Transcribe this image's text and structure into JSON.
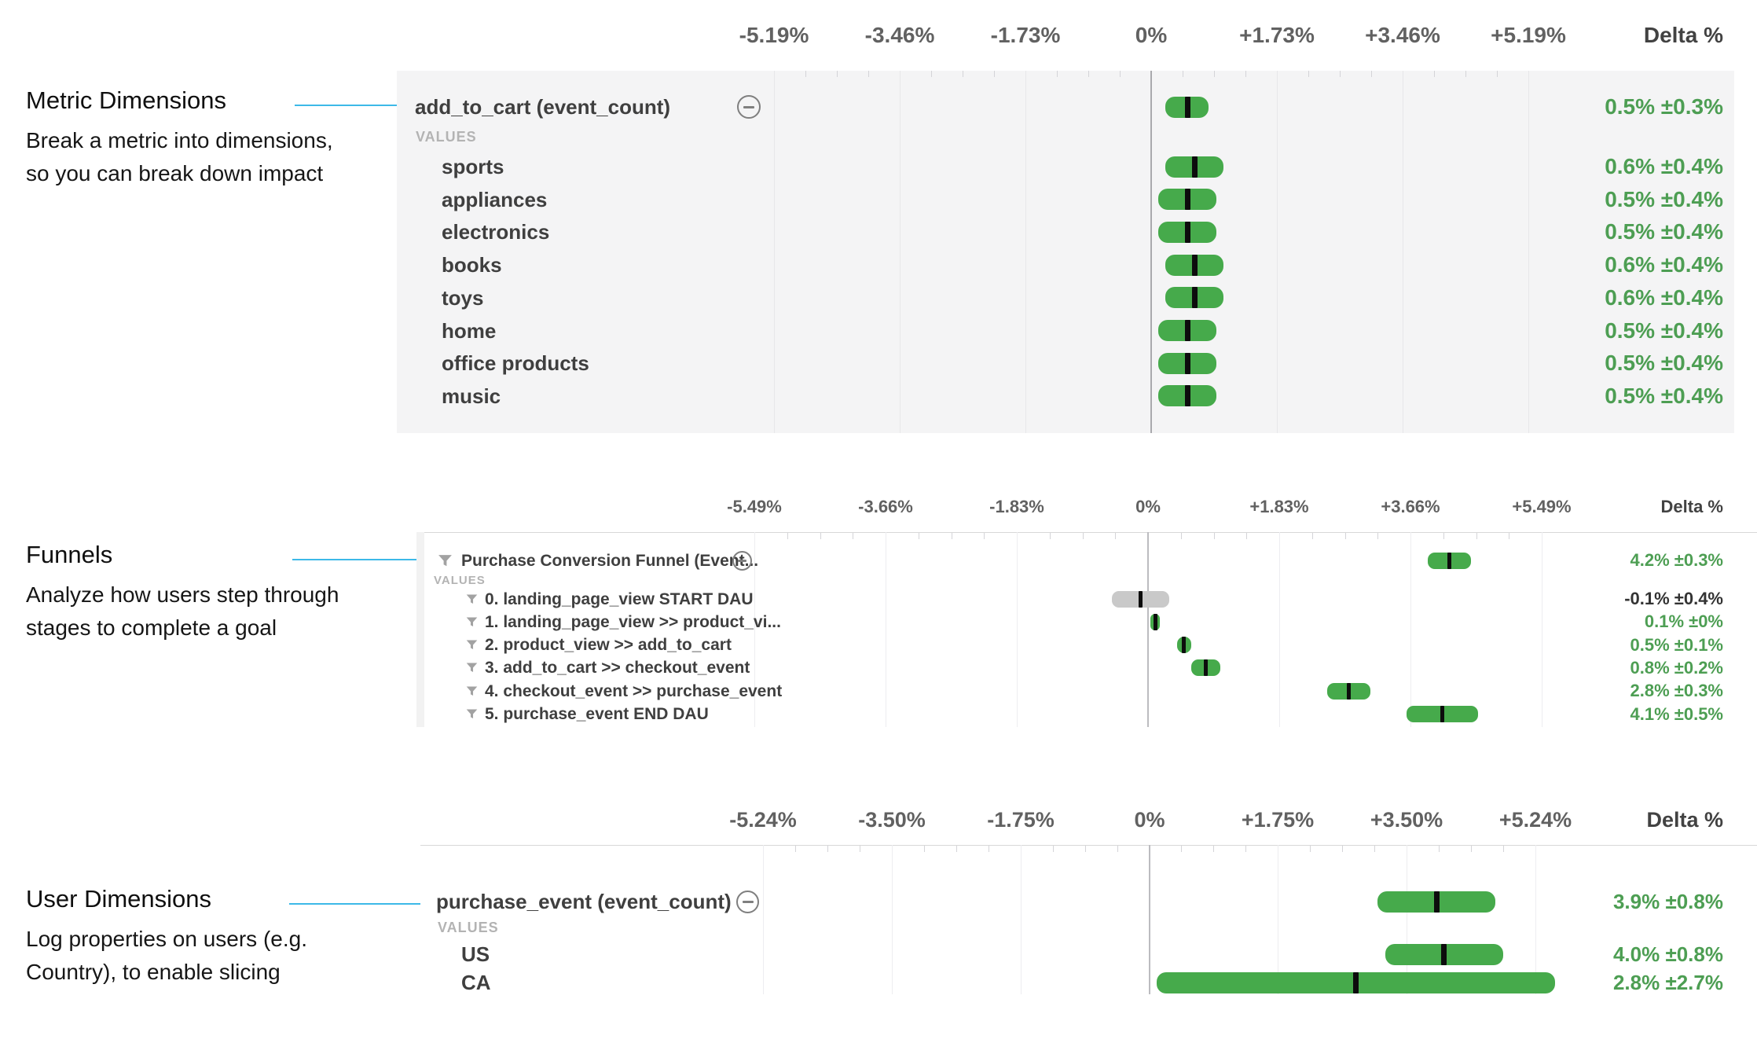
{
  "colors": {
    "bar_green": "#46aa4b",
    "bar_gray": "#c9c9c9",
    "delta_green": "#4d9e53",
    "delta_dark": "#333333",
    "accent_blue": "#3db9e8"
  },
  "annotations": [
    {
      "title": "Metric Dimensions",
      "lines": [
        "Break a metric into dimensions,",
        "so you can break down impact"
      ]
    },
    {
      "title": "Funnels",
      "lines": [
        "Analyze how users step through",
        "stages to complete a goal"
      ]
    },
    {
      "title": "User Dimensions",
      "lines": [
        "Log properties on users (e.g.",
        "Country), to enable slicing"
      ]
    }
  ],
  "chart_data": [
    {
      "id": "metric-dimensions",
      "type": "bar",
      "subtype": "horizontal-confidence-interval",
      "axis": {
        "tick_labels": [
          "-5.19%",
          "-3.46%",
          "-1.73%",
          "0%",
          "+1.73%",
          "+3.46%",
          "+5.19%"
        ],
        "tick_values": [
          -5.19,
          -3.46,
          -1.73,
          0,
          1.73,
          3.46,
          5.19
        ],
        "range": [
          -5.19,
          5.19
        ],
        "delta_header": "Delta %",
        "grid": true
      },
      "values_label": "VALUES",
      "header": {
        "label": "add_to_cart (event_count)",
        "value": 0.5,
        "moe": 0.3,
        "delta": "0.5% ±0.3%",
        "significant": true,
        "funnel_icon": false
      },
      "rows": [
        {
          "label": "sports",
          "value": 0.6,
          "moe": 0.4,
          "delta": "0.6% ±0.4%",
          "significant": true,
          "funnel_icon": false
        },
        {
          "label": "appliances",
          "value": 0.5,
          "moe": 0.4,
          "delta": "0.5% ±0.4%",
          "significant": true,
          "funnel_icon": false
        },
        {
          "label": "electronics",
          "value": 0.5,
          "moe": 0.4,
          "delta": "0.5% ±0.4%",
          "significant": true,
          "funnel_icon": false
        },
        {
          "label": "books",
          "value": 0.6,
          "moe": 0.4,
          "delta": "0.6% ±0.4%",
          "significant": true,
          "funnel_icon": false
        },
        {
          "label": "toys",
          "value": 0.6,
          "moe": 0.4,
          "delta": "0.6% ±0.4%",
          "significant": true,
          "funnel_icon": false
        },
        {
          "label": "home",
          "value": 0.5,
          "moe": 0.4,
          "delta": "0.5% ±0.4%",
          "significant": true,
          "funnel_icon": false
        },
        {
          "label": "office products",
          "value": 0.5,
          "moe": 0.4,
          "delta": "0.5% ±0.4%",
          "significant": true,
          "funnel_icon": false
        },
        {
          "label": "music",
          "value": 0.5,
          "moe": 0.4,
          "delta": "0.5% ±0.4%",
          "significant": true,
          "funnel_icon": false
        }
      ]
    },
    {
      "id": "funnels",
      "type": "bar",
      "subtype": "horizontal-confidence-interval",
      "axis": {
        "tick_labels": [
          "-5.49%",
          "-3.66%",
          "-1.83%",
          "0%",
          "+1.83%",
          "+3.66%",
          "+5.49%"
        ],
        "tick_values": [
          -5.49,
          -3.66,
          -1.83,
          0,
          1.83,
          3.66,
          5.49
        ],
        "range": [
          -5.49,
          5.49
        ],
        "delta_header": "Delta %",
        "grid": true
      },
      "values_label": "VALUES",
      "header": {
        "label": "Purchase Conversion Funnel (Event...",
        "value": 4.2,
        "moe": 0.3,
        "delta": "4.2% ±0.3%",
        "significant": true,
        "funnel_icon": true
      },
      "rows": [
        {
          "label": "0. landing_page_view START DAU",
          "value": -0.1,
          "moe": 0.4,
          "delta": "-0.1% ±0.4%",
          "significant": false,
          "funnel_icon": true
        },
        {
          "label": "1. landing_page_view >> product_vi...",
          "value": 0.1,
          "moe": 0.0,
          "delta": "0.1% ±0%",
          "significant": true,
          "funnel_icon": true
        },
        {
          "label": "2. product_view >> add_to_cart",
          "value": 0.5,
          "moe": 0.1,
          "delta": "0.5% ±0.1%",
          "significant": true,
          "funnel_icon": true
        },
        {
          "label": "3. add_to_cart >> checkout_event",
          "value": 0.8,
          "moe": 0.2,
          "delta": "0.8% ±0.2%",
          "significant": true,
          "funnel_icon": true
        },
        {
          "label": "4. checkout_event >> purchase_event",
          "value": 2.8,
          "moe": 0.3,
          "delta": "2.8% ±0.3%",
          "significant": true,
          "funnel_icon": true
        },
        {
          "label": "5. purchase_event END DAU",
          "value": 4.1,
          "moe": 0.5,
          "delta": "4.1% ±0.5%",
          "significant": true,
          "funnel_icon": true
        }
      ]
    },
    {
      "id": "user-dimensions",
      "type": "bar",
      "subtype": "horizontal-confidence-interval",
      "axis": {
        "tick_labels": [
          "-5.24%",
          "-3.50%",
          "-1.75%",
          "0%",
          "+1.75%",
          "+3.50%",
          "+5.24%"
        ],
        "tick_values": [
          -5.24,
          -3.5,
          -1.75,
          0,
          1.75,
          3.5,
          5.24
        ],
        "range": [
          -5.24,
          5.24
        ],
        "delta_header": "Delta %",
        "grid": true
      },
      "values_label": "VALUES",
      "header": {
        "label": "purchase_event (event_count)",
        "value": 3.9,
        "moe": 0.8,
        "delta": "3.9% ±0.8%",
        "significant": true,
        "funnel_icon": false
      },
      "rows": [
        {
          "label": "US",
          "value": 4.0,
          "moe": 0.8,
          "delta": "4.0% ±0.8%",
          "significant": true,
          "funnel_icon": false
        },
        {
          "label": "CA",
          "value": 2.8,
          "moe": 2.7,
          "delta": "2.8% ±2.7%",
          "significant": true,
          "funnel_icon": false
        }
      ]
    }
  ]
}
